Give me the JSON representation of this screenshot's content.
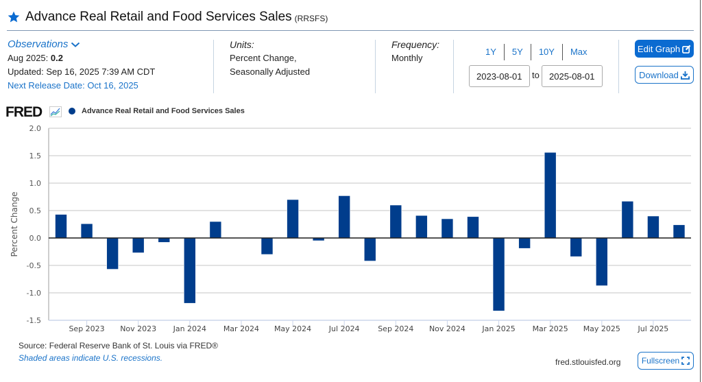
{
  "header": {
    "title": "Advance Real Retail and Food Services Sales",
    "series_id": "(RRSFS)",
    "star_color": "#0b6bd1"
  },
  "observations": {
    "label": "Observations",
    "latest_period": "Aug 2025:",
    "latest_value": "0.2",
    "updated": "Updated: Sep 16, 2025 7:39 AM CDT",
    "next_release": "Next Release Date: Oct 16, 2025"
  },
  "units": {
    "label": "Units:",
    "line1": "Percent Change,",
    "line2": "Seasonally Adjusted"
  },
  "frequency": {
    "label": "Frequency:",
    "value": "Monthly"
  },
  "range": {
    "links": [
      "1Y",
      "5Y",
      "10Y",
      "Max"
    ],
    "start": "2023-08-01",
    "to_label": "to",
    "end": "2025-08-01"
  },
  "buttons": {
    "edit_graph": "Edit Graph",
    "download": "Download",
    "fullscreen": "Fullscreen"
  },
  "logo": {
    "text": "FRED"
  },
  "footer": {
    "source": "Source: Federal Reserve Bank of St. Louis via FRED®",
    "recession_note": "Shaded areas indicate U.S. recessions.",
    "site": "fred.stlouisfed.org"
  },
  "chart_data": {
    "type": "bar",
    "title": "",
    "legend": [
      "Advance Real Retail and Food Services Sales"
    ],
    "legend_position": "top-left",
    "xlabel": "",
    "ylabel": "Percent Change",
    "ylim": [
      -1.5,
      2.0
    ],
    "yticks": [
      "2.0",
      "1.5",
      "1.0",
      "0.5",
      "0.0",
      "-0.5",
      "-1.0",
      "-1.5"
    ],
    "ytick_values": [
      2.0,
      1.5,
      1.0,
      0.5,
      0.0,
      -0.5,
      -1.0,
      -1.5
    ],
    "grid": true,
    "bar_color": "#003d8c",
    "categories": [
      "Aug 2023",
      "Sep 2023",
      "Oct 2023",
      "Nov 2023",
      "Dec 2023",
      "Jan 2024",
      "Feb 2024",
      "Mar 2024",
      "Apr 2024",
      "May 2024",
      "Jun 2024",
      "Jul 2024",
      "Aug 2024",
      "Sep 2024",
      "Oct 2024",
      "Nov 2024",
      "Dec 2024",
      "Jan 2025",
      "Feb 2025",
      "Mar 2025",
      "Apr 2025",
      "May 2025",
      "Jun 2025",
      "Jul 2025",
      "Aug 2025"
    ],
    "values": [
      0.43,
      0.26,
      -0.57,
      -0.27,
      -0.08,
      -1.19,
      0.3,
      0.0,
      -0.3,
      0.7,
      -0.05,
      0.77,
      -0.42,
      0.6,
      0.41,
      0.35,
      0.39,
      -1.33,
      -0.19,
      1.56,
      -0.34,
      -0.87,
      0.67,
      0.4,
      0.24
    ],
    "xtick_labels": [
      "Sep 2023",
      "Nov 2023",
      "Jan 2024",
      "Mar 2024",
      "May 2024",
      "Jul 2024",
      "Sep 2024",
      "Nov 2024",
      "Jan 2025",
      "Mar 2025",
      "May 2025",
      "Jul 2025"
    ],
    "xtick_indices": [
      1,
      3,
      5,
      7,
      9,
      11,
      13,
      15,
      17,
      19,
      21,
      23
    ]
  }
}
